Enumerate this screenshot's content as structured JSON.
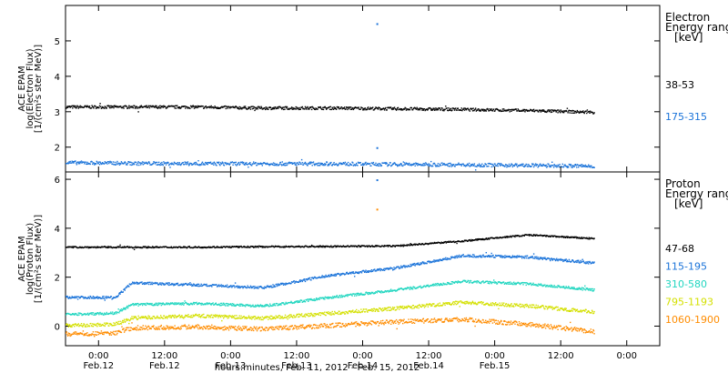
{
  "chart_data": [
    {
      "type": "scatter",
      "panel": "electron",
      "ylabel": [
        "ACE EPAM",
        "log(Electron Flux)",
        "[1/(cm²s ster MeV)]"
      ],
      "legend_title": [
        "Electron",
        "Energy range",
        "[keV]"
      ],
      "ylim": [
        1.3,
        6.0
      ],
      "yticks": [
        2,
        3,
        4,
        5
      ],
      "series": [
        {
          "name": "38-53",
          "color": "#000000",
          "x": [
            0,
            12,
            24,
            36,
            48,
            60,
            72,
            84,
            96
          ],
          "y": [
            3.15,
            3.15,
            3.15,
            3.12,
            3.12,
            3.1,
            3.08,
            3.05,
            3.0
          ],
          "noise": 0.04,
          "outliers": []
        },
        {
          "name": "175-315",
          "color": "#1a73d9",
          "x": [
            0,
            12,
            24,
            36,
            48,
            60,
            72,
            84,
            96
          ],
          "y": [
            1.58,
            1.56,
            1.55,
            1.55,
            1.55,
            1.53,
            1.52,
            1.5,
            1.48
          ],
          "noise": 0.05,
          "outliers": [
            [
              56.5,
              5.5
            ],
            [
              56.5,
              2.0
            ]
          ]
        }
      ]
    },
    {
      "type": "scatter",
      "panel": "proton",
      "ylabel": [
        "ACE EPAM",
        "log(Proton Flux)",
        "[1/(cm²s ster MeV)]"
      ],
      "legend_title": [
        "Proton",
        "Energy range",
        "[keV]"
      ],
      "ylim": [
        -0.8,
        6.3
      ],
      "yticks": [
        0,
        2,
        4,
        6
      ],
      "series": [
        {
          "name": "47-68",
          "color": "#000000",
          "x": [
            0,
            12,
            24,
            36,
            48,
            60,
            72,
            84,
            96
          ],
          "y": [
            3.25,
            3.25,
            3.25,
            3.27,
            3.28,
            3.3,
            3.5,
            3.75,
            3.6
          ],
          "noise": 0.03,
          "outliers": []
        },
        {
          "name": "115-195",
          "color": "#1a73d9",
          "x": [
            0,
            9,
            12,
            24,
            36,
            48,
            60,
            72,
            84,
            96
          ],
          "y": [
            1.2,
            1.2,
            1.8,
            1.7,
            1.6,
            2.1,
            2.4,
            2.9,
            2.85,
            2.6
          ],
          "noise": 0.05,
          "outliers": [
            [
              56.5,
              6.0
            ]
          ]
        },
        {
          "name": "310-580",
          "color": "#22d6c0",
          "x": [
            0,
            9,
            12,
            24,
            36,
            48,
            60,
            72,
            84,
            96
          ],
          "y": [
            0.5,
            0.55,
            0.9,
            0.95,
            0.85,
            1.2,
            1.5,
            1.85,
            1.75,
            1.5
          ],
          "noise": 0.05,
          "outliers": []
        },
        {
          "name": "795-1193",
          "color": "#d4e000",
          "x": [
            0,
            9,
            12,
            24,
            36,
            48,
            60,
            72,
            84,
            96
          ],
          "y": [
            0.05,
            0.1,
            0.35,
            0.45,
            0.35,
            0.55,
            0.75,
            1.0,
            0.85,
            0.6
          ],
          "noise": 0.07,
          "outliers": []
        },
        {
          "name": "1060-1900",
          "color": "#ff8c00",
          "x": [
            0,
            9,
            12,
            24,
            36,
            48,
            60,
            72,
            84,
            96
          ],
          "y": [
            -0.3,
            -0.25,
            -0.05,
            0.0,
            -0.1,
            0.05,
            0.2,
            0.3,
            0.1,
            -0.2
          ],
          "noise": 0.09,
          "outliers": [
            [
              56.5,
              4.8
            ]
          ]
        }
      ]
    }
  ],
  "x_axis": {
    "tick_hours": [
      6,
      18,
      30,
      42,
      54,
      66,
      78,
      90,
      102
    ],
    "tick_time": [
      "0:00",
      "12:00",
      "0:00",
      "12:00",
      "0:00",
      "12:00",
      "0:00",
      "12:00",
      "0:00"
    ],
    "tick_date": [
      "Feb.12",
      "Feb.12",
      "Feb.13",
      "Feb.13",
      "Feb.14",
      "Feb.14",
      "Feb.15"
    ],
    "xlim": [
      0,
      108
    ],
    "data_end": 96,
    "title": "hours:minutes, Feb. 11, 2012 - Feb. 15, 2012"
  }
}
